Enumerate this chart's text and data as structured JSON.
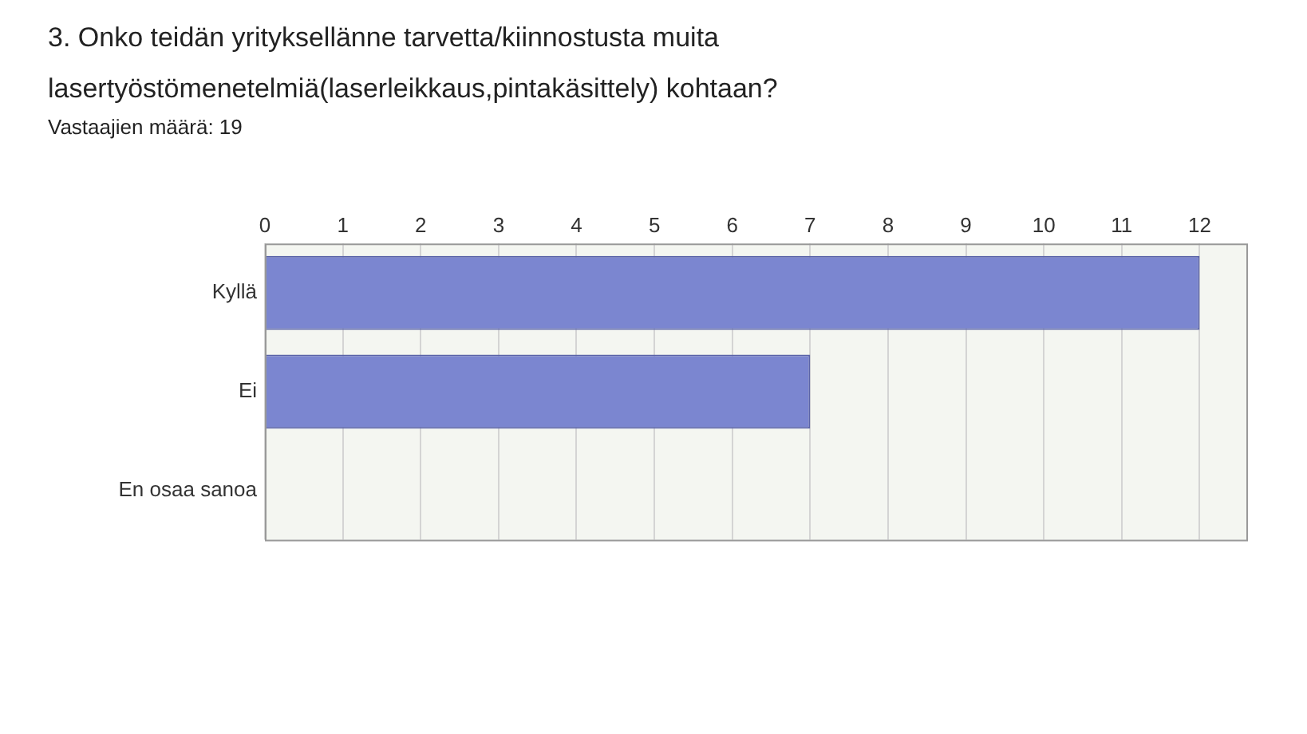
{
  "chart_data": {
    "type": "bar",
    "orientation": "horizontal",
    "title": "3. Onko teidän yrityksellänne tarvetta/kiinnostusta muita lasertyöstömenetelmiä(laserleikkaus,pintakäsittely) kohtaan?",
    "subtitle": "Vastaajien määrä: 19",
    "categories": [
      "Kyllä",
      "Ei",
      "En osaa sanoa"
    ],
    "values": [
      12,
      7,
      0
    ],
    "color": "#7b86d0",
    "xlim": [
      0,
      12.6
    ],
    "xticks": [
      0,
      1,
      2,
      3,
      4,
      5,
      6,
      7,
      8,
      9,
      10,
      11,
      12
    ],
    "grid": "x",
    "legend": false
  }
}
